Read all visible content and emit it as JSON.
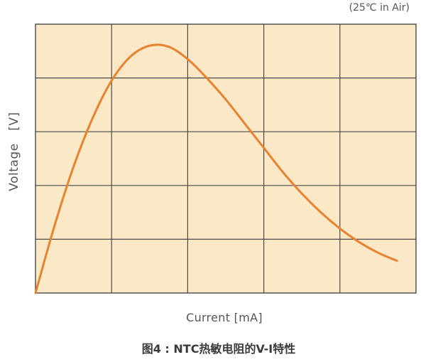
{
  "condition_note": "(25℃ in Air)",
  "caption": "图4 : NTC热敏电阻的V-I特性",
  "colors": {
    "plot_background": "#fbe8c6",
    "grid": "#4a4a4a",
    "curve": "#e8822e",
    "text": "#555555"
  },
  "chart_data": {
    "type": "line",
    "title": "",
    "xlabel": "Current [mA]",
    "ylabel": "Voltage   [V]",
    "xlim": [
      0,
      5
    ],
    "ylim": [
      0,
      5
    ],
    "grid": true,
    "legend": "none",
    "tick_labels": "none",
    "series": [
      {
        "x": [
          0,
          0.25,
          0.5,
          0.75,
          1.0,
          1.25,
          1.5,
          1.75,
          2.0,
          2.25,
          2.5,
          2.75,
          3.0,
          3.25,
          3.5,
          3.75,
          4.0,
          4.25,
          4.5,
          4.75
        ],
        "y": [
          0,
          1.25,
          2.35,
          3.25,
          3.95,
          4.4,
          4.6,
          4.58,
          4.35,
          4.0,
          3.6,
          3.15,
          2.7,
          2.25,
          1.85,
          1.5,
          1.2,
          0.95,
          0.75,
          0.6
        ]
      }
    ]
  }
}
